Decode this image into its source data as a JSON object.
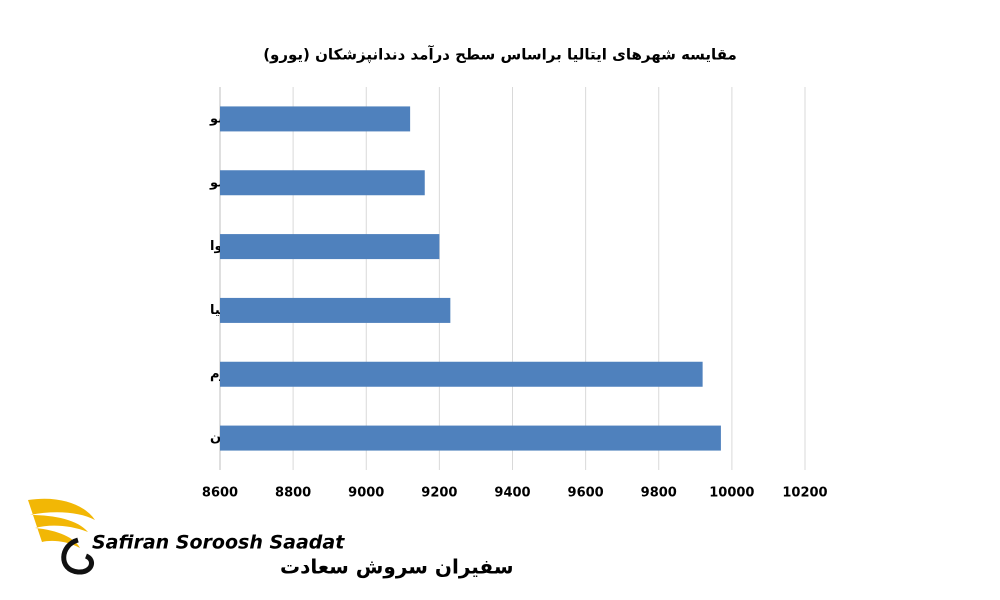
{
  "chart_data": {
    "type": "barh",
    "title": "مقایسه شهرهای ایتالیا براساس سطح درآمد دندانپزشکان (یورو)",
    "categories": [
      "تورینو",
      "پالرمو",
      "جنوا",
      "بلونیا",
      "رم",
      "میلان"
    ],
    "values": [
      9120,
      9160,
      9200,
      9230,
      9920,
      9970
    ],
    "color": "#4f81bd",
    "xlim": [
      8600,
      10200
    ],
    "xticks": [
      8600,
      8800,
      9000,
      9200,
      9400,
      9600,
      9800,
      10000,
      10200
    ],
    "grid": true
  },
  "logo": {
    "latin": "Safiran Soroosh Saadat",
    "persian": "سفیران سروش سعادت"
  }
}
